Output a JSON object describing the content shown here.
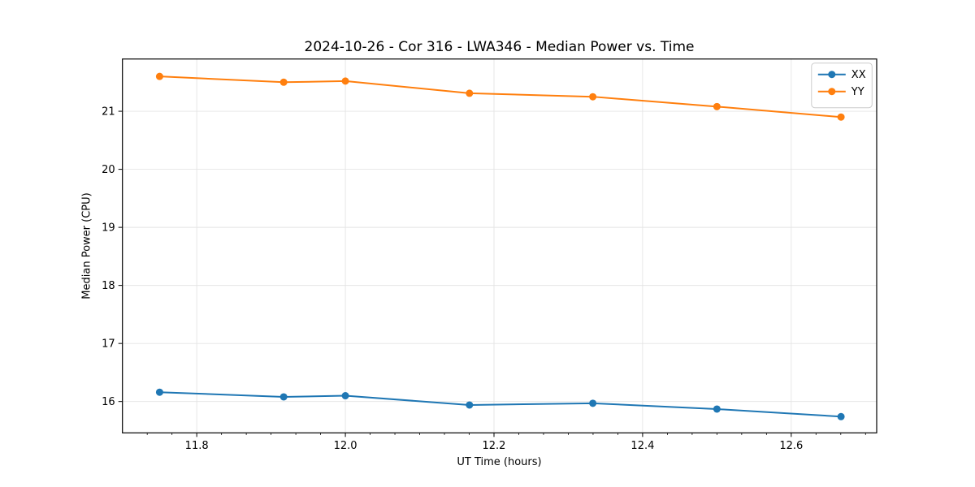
{
  "chart_data": {
    "type": "line",
    "title": "2024-10-26 - Cor 316 - LWA346 - Median Power vs. Time",
    "xlabel": "UT Time (hours)",
    "ylabel": "Median Power (CPU)",
    "x": [
      11.75,
      11.917,
      12.0,
      12.167,
      12.333,
      12.5,
      12.667
    ],
    "series": [
      {
        "name": "XX",
        "color": "#1f77b4",
        "values": [
          16.16,
          16.08,
          16.1,
          15.94,
          15.97,
          15.87,
          15.74
        ]
      },
      {
        "name": "YY",
        "color": "#ff7f0e",
        "values": [
          21.6,
          21.5,
          21.52,
          21.31,
          21.25,
          21.08,
          20.9
        ]
      }
    ],
    "xlim": [
      11.7,
      12.715
    ],
    "ylim": [
      15.46,
      21.9
    ],
    "xticks": [
      11.8,
      12.0,
      12.2,
      12.4,
      12.6
    ],
    "xtick_labels": [
      "11.8",
      "12.0",
      "12.2",
      "12.4",
      "12.6"
    ],
    "yticks": [
      16,
      17,
      18,
      19,
      20,
      21
    ],
    "ytick_labels": [
      "16",
      "17",
      "18",
      "19",
      "20",
      "21"
    ],
    "x_minor_step": 0.0333333,
    "grid": true,
    "legend_position": "upper right",
    "marker": "circle",
    "colors": {
      "grid": "#e4e4e4",
      "spine": "#000000",
      "tick": "#000000",
      "tick_label": "#000000",
      "legend_border": "#cccccc",
      "legend_bg": "#ffffff",
      "background": "#ffffff"
    }
  }
}
